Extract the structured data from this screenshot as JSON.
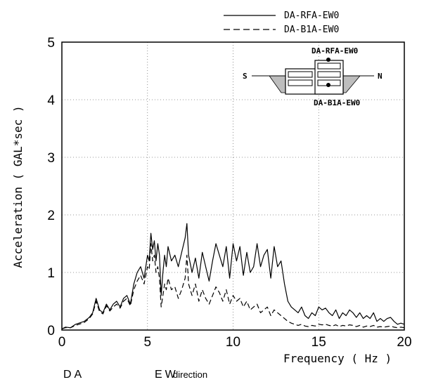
{
  "chart_data": {
    "type": "line",
    "title": "",
    "xlabel": "Frequency ( Hz )",
    "ylabel": "Acceleration ( GAL*sec )",
    "xlim": [
      0,
      20
    ],
    "ylim": [
      0,
      5
    ],
    "xticks": [
      "0",
      "5",
      "10",
      "15",
      "20"
    ],
    "yticks": [
      "0",
      "1",
      "2",
      "3",
      "4",
      "5"
    ],
    "grid": true,
    "legend_position": "above-right",
    "series": [
      {
        "name": "DA-RFA-EW0",
        "style": "solid",
        "color": "#000000",
        "x": [
          0,
          0.2,
          0.5,
          0.8,
          1.0,
          1.3,
          1.6,
          1.8,
          2.0,
          2.2,
          2.4,
          2.6,
          2.8,
          3.0,
          3.2,
          3.4,
          3.6,
          3.8,
          4.0,
          4.2,
          4.4,
          4.6,
          4.8,
          5.0,
          5.1,
          5.2,
          5.3,
          5.4,
          5.5,
          5.6,
          5.7,
          5.8,
          5.9,
          6.0,
          6.1,
          6.2,
          6.4,
          6.6,
          6.8,
          7.0,
          7.2,
          7.3,
          7.4,
          7.6,
          7.8,
          8.0,
          8.2,
          8.4,
          8.6,
          8.8,
          9.0,
          9.2,
          9.4,
          9.6,
          9.8,
          10.0,
          10.2,
          10.4,
          10.6,
          10.8,
          11.0,
          11.2,
          11.4,
          11.6,
          11.8,
          12.0,
          12.2,
          12.4,
          12.6,
          12.8,
          13.0,
          13.2,
          13.4,
          13.6,
          13.8,
          14.0,
          14.2,
          14.4,
          14.6,
          14.8,
          15.0,
          15.2,
          15.4,
          15.6,
          15.8,
          16.0,
          16.2,
          16.4,
          16.6,
          16.8,
          17.0,
          17.2,
          17.4,
          17.6,
          17.8,
          18.0,
          18.2,
          18.4,
          18.6,
          18.8,
          19.0,
          19.2,
          19.4,
          19.6,
          19.8,
          20.0
        ],
        "y": [
          0.02,
          0.05,
          0.04,
          0.1,
          0.12,
          0.15,
          0.22,
          0.3,
          0.55,
          0.35,
          0.3,
          0.45,
          0.35,
          0.45,
          0.5,
          0.4,
          0.55,
          0.6,
          0.45,
          0.8,
          1.0,
          1.1,
          0.9,
          1.3,
          1.2,
          1.68,
          1.4,
          1.55,
          1.2,
          1.5,
          1.3,
          0.6,
          1.0,
          1.3,
          1.1,
          1.45,
          1.2,
          1.3,
          1.1,
          1.35,
          1.6,
          1.85,
          1.3,
          1.0,
          1.25,
          0.9,
          1.35,
          1.1,
          0.85,
          1.2,
          1.5,
          1.3,
          1.1,
          1.45,
          0.9,
          1.5,
          1.2,
          1.45,
          0.95,
          1.35,
          1.0,
          1.1,
          1.5,
          1.1,
          1.3,
          1.4,
          0.9,
          1.45,
          1.1,
          1.2,
          0.8,
          0.5,
          0.4,
          0.35,
          0.3,
          0.4,
          0.25,
          0.2,
          0.3,
          0.25,
          0.4,
          0.35,
          0.38,
          0.3,
          0.25,
          0.35,
          0.2,
          0.3,
          0.25,
          0.35,
          0.3,
          0.22,
          0.3,
          0.2,
          0.25,
          0.2,
          0.3,
          0.15,
          0.2,
          0.15,
          0.2,
          0.22,
          0.15,
          0.1,
          0.12,
          0.1
        ]
      },
      {
        "name": "DA-B1A-EW0",
        "style": "dashed",
        "color": "#000000",
        "x": [
          0,
          0.2,
          0.5,
          0.8,
          1.0,
          1.3,
          1.6,
          1.8,
          2.0,
          2.2,
          2.4,
          2.6,
          2.8,
          3.0,
          3.2,
          3.4,
          3.6,
          3.8,
          4.0,
          4.2,
          4.4,
          4.6,
          4.8,
          5.0,
          5.1,
          5.2,
          5.3,
          5.4,
          5.5,
          5.6,
          5.7,
          5.8,
          5.9,
          6.0,
          6.1,
          6.2,
          6.4,
          6.6,
          6.8,
          7.0,
          7.2,
          7.3,
          7.4,
          7.6,
          7.8,
          8.0,
          8.2,
          8.4,
          8.6,
          8.8,
          9.0,
          9.2,
          9.4,
          9.6,
          9.8,
          10.0,
          10.2,
          10.4,
          10.6,
          10.8,
          11.0,
          11.2,
          11.4,
          11.6,
          11.8,
          12.0,
          12.2,
          12.4,
          12.6,
          12.8,
          13.0,
          13.2,
          13.4,
          13.6,
          13.8,
          14.0,
          14.2,
          14.4,
          14.6,
          14.8,
          15.0,
          15.2,
          15.4,
          15.6,
          15.8,
          16.0,
          16.2,
          16.4,
          16.6,
          16.8,
          17.0,
          17.2,
          17.4,
          17.6,
          17.8,
          18.0,
          18.2,
          18.4,
          18.6,
          18.8,
          19.0,
          19.2,
          19.4,
          19.6,
          19.8,
          20.0
        ],
        "y": [
          0.02,
          0.04,
          0.04,
          0.08,
          0.1,
          0.13,
          0.2,
          0.28,
          0.5,
          0.32,
          0.28,
          0.42,
          0.33,
          0.4,
          0.45,
          0.38,
          0.5,
          0.55,
          0.42,
          0.7,
          0.85,
          0.95,
          0.8,
          1.1,
          1.05,
          1.5,
          1.2,
          1.3,
          1.0,
          1.1,
          0.9,
          0.4,
          0.6,
          0.8,
          0.7,
          0.9,
          0.7,
          0.75,
          0.55,
          0.7,
          0.9,
          1.3,
          0.8,
          0.6,
          0.8,
          0.5,
          0.7,
          0.55,
          0.45,
          0.6,
          0.75,
          0.65,
          0.5,
          0.7,
          0.45,
          0.6,
          0.5,
          0.55,
          0.4,
          0.5,
          0.35,
          0.4,
          0.45,
          0.3,
          0.35,
          0.4,
          0.25,
          0.35,
          0.3,
          0.25,
          0.2,
          0.15,
          0.12,
          0.1,
          0.08,
          0.1,
          0.07,
          0.06,
          0.08,
          0.07,
          0.1,
          0.09,
          0.1,
          0.08,
          0.07,
          0.09,
          0.06,
          0.08,
          0.07,
          0.09,
          0.08,
          0.06,
          0.08,
          0.05,
          0.07,
          0.06,
          0.08,
          0.05,
          0.06,
          0.05,
          0.06,
          0.07,
          0.05,
          0.04,
          0.05,
          0.04
        ]
      }
    ],
    "inset": {
      "top_sensor": "DA-RFA-EW0",
      "bottom_sensor": "DA-B1A-EW0",
      "left_label": "S",
      "right_label": "N"
    },
    "caption": {
      "site": "DA",
      "direction_prefix": "EW",
      "direction_suffix": "direction"
    }
  }
}
